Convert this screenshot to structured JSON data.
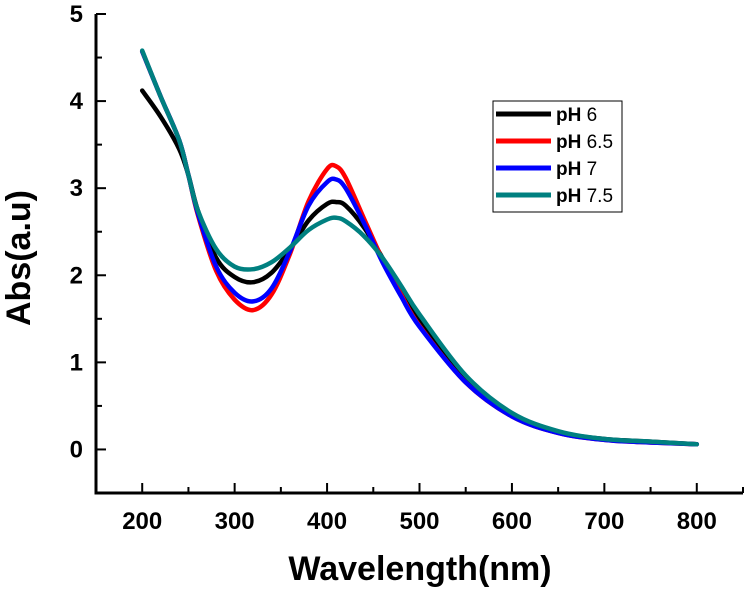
{
  "chart_data": {
    "type": "line",
    "xlabel": "Wavelength(nm)",
    "ylabel": "Abs(a.u)",
    "xlim": [
      150,
      850
    ],
    "ylim": [
      -0.5,
      5
    ],
    "x_ticks": [
      200,
      300,
      400,
      500,
      600,
      700,
      800
    ],
    "y_ticks": [
      0,
      1,
      2,
      3,
      4,
      5
    ],
    "grid": false,
    "legend_position": "top-right",
    "series": [
      {
        "name": "pH 6",
        "color": "#000000",
        "x": [
          200,
          220,
          240,
          250,
          260,
          280,
          300,
          320,
          340,
          360,
          380,
          400,
          410,
          420,
          440,
          460,
          480,
          500,
          550,
          600,
          650,
          700,
          750,
          800
        ],
        "y": [
          4.12,
          3.82,
          3.45,
          3.15,
          2.75,
          2.2,
          1.98,
          1.92,
          2.03,
          2.3,
          2.63,
          2.82,
          2.84,
          2.8,
          2.55,
          2.2,
          1.83,
          1.48,
          0.8,
          0.4,
          0.2,
          0.12,
          0.09,
          0.06
        ]
      },
      {
        "name": "pH 6.5",
        "color": "#ff0000",
        "x": [
          200,
          220,
          240,
          250,
          260,
          280,
          300,
          320,
          340,
          360,
          380,
          400,
          410,
          420,
          440,
          460,
          480,
          500,
          550,
          600,
          650,
          700,
          750,
          800
        ],
        "y": [
          4.57,
          4.05,
          3.55,
          3.15,
          2.7,
          2.05,
          1.72,
          1.6,
          1.78,
          2.25,
          2.85,
          3.22,
          3.25,
          3.12,
          2.65,
          2.18,
          1.78,
          1.42,
          0.77,
          0.38,
          0.19,
          0.11,
          0.08,
          0.06
        ]
      },
      {
        "name": "pH 7",
        "color": "#0000ff",
        "x": [
          200,
          220,
          240,
          250,
          260,
          280,
          300,
          320,
          340,
          360,
          380,
          400,
          410,
          420,
          440,
          460,
          480,
          500,
          550,
          600,
          650,
          700,
          750,
          800
        ],
        "y": [
          4.57,
          4.05,
          3.55,
          3.15,
          2.72,
          2.1,
          1.8,
          1.7,
          1.85,
          2.28,
          2.8,
          3.07,
          3.1,
          3.0,
          2.6,
          2.15,
          1.76,
          1.41,
          0.77,
          0.38,
          0.19,
          0.11,
          0.08,
          0.06
        ]
      },
      {
        "name": "pH 7.5",
        "color": "#008080",
        "x": [
          200,
          220,
          240,
          250,
          260,
          280,
          300,
          320,
          340,
          360,
          380,
          400,
          410,
          420,
          440,
          460,
          480,
          500,
          550,
          600,
          650,
          700,
          750,
          800
        ],
        "y": [
          4.58,
          4.05,
          3.55,
          3.15,
          2.75,
          2.3,
          2.1,
          2.07,
          2.15,
          2.32,
          2.52,
          2.64,
          2.66,
          2.62,
          2.45,
          2.2,
          1.88,
          1.55,
          0.85,
          0.42,
          0.21,
          0.12,
          0.09,
          0.06
        ]
      }
    ]
  }
}
